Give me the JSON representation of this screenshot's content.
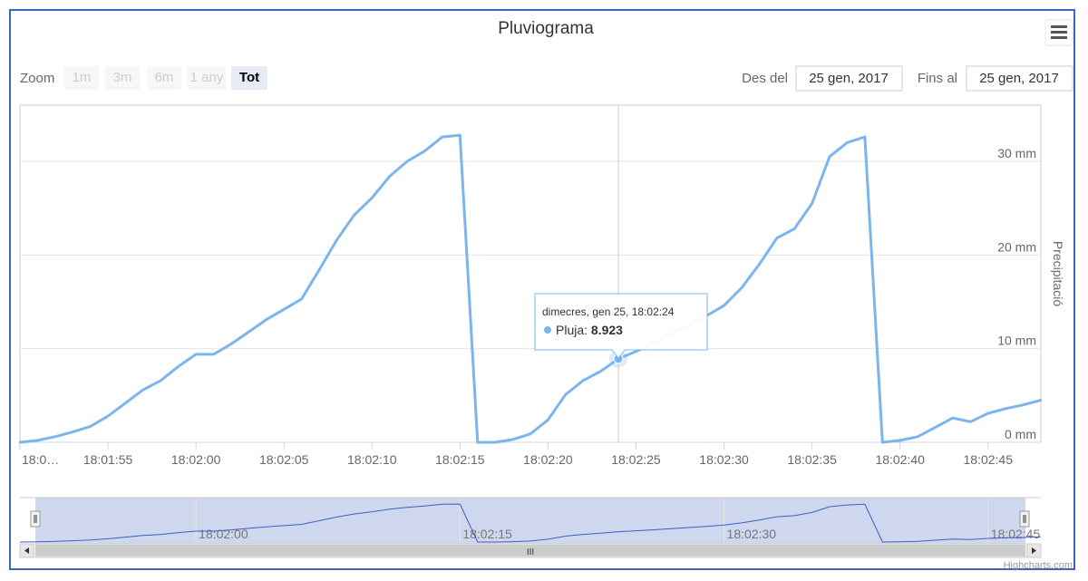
{
  "title": "Pluviograma",
  "credits": "Highcharts.com",
  "range_selector": {
    "zoom_label": "Zoom",
    "buttons": [
      {
        "label": "1m",
        "active": false
      },
      {
        "label": "3m",
        "active": false
      },
      {
        "label": "6m",
        "active": false
      },
      {
        "label": "1 any",
        "active": false
      },
      {
        "label": "Tot",
        "active": true
      }
    ],
    "from_label": "Des del",
    "from_value": "25 gen, 2017",
    "to_label": "Fins al",
    "to_value": "25 gen, 2017"
  },
  "tooltip": {
    "header": "dimecres, gen 25, 18:02:24",
    "series_name": "Pluja",
    "value": "8.923",
    "x": "18:02:24",
    "y": 8.923
  },
  "colors": {
    "series": "#7cb5ec",
    "navigator_mask": "#c5d0ea",
    "navigator_line": "#3b5fc4",
    "frame": "#3a67b8"
  },
  "menu_icon": "hamburger-menu-icon",
  "chart_data": {
    "type": "line",
    "title": "Pluviograma",
    "xlabel": "",
    "ylabel": "Precipitació",
    "x_ticks": [
      "18:0…",
      "18:01:55",
      "18:02:00",
      "18:02:05",
      "18:02:10",
      "18:02:15",
      "18:02:20",
      "18:02:25",
      "18:02:30",
      "18:02:35",
      "18:02:40",
      "18:02:45"
    ],
    "y_ticks": [
      "0 mm",
      "10 mm",
      "20 mm",
      "30 mm"
    ],
    "ylim": [
      0,
      36
    ],
    "xlim": [
      "18:01:50",
      "18:02:48"
    ],
    "grid": true,
    "legend": "none",
    "series": [
      {
        "name": "Pluja",
        "x": [
          "18:01:50",
          "18:01:51",
          "18:01:52",
          "18:01:53",
          "18:01:54",
          "18:01:55",
          "18:01:56",
          "18:01:57",
          "18:01:58",
          "18:01:59",
          "18:02:00",
          "18:02:01",
          "18:02:02",
          "18:02:03",
          "18:02:04",
          "18:02:05",
          "18:02:06",
          "18:02:07",
          "18:02:08",
          "18:02:09",
          "18:02:10",
          "18:02:11",
          "18:02:12",
          "18:02:13",
          "18:02:14",
          "18:02:15",
          "18:02:16",
          "18:02:17",
          "18:02:18",
          "18:02:19",
          "18:02:20",
          "18:02:21",
          "18:02:22",
          "18:02:23",
          "18:02:24",
          "18:02:25",
          "18:02:26",
          "18:02:27",
          "18:02:28",
          "18:02:29",
          "18:02:30",
          "18:02:31",
          "18:02:32",
          "18:02:33",
          "18:02:34",
          "18:02:35",
          "18:02:36",
          "18:02:37",
          "18:02:38",
          "18:02:39",
          "18:02:40",
          "18:02:41",
          "18:02:42",
          "18:02:43",
          "18:02:44",
          "18:02:45",
          "18:02:46",
          "18:02:47",
          "18:02:48"
        ],
        "values": [
          0,
          0.2,
          0.6,
          1.1,
          1.7,
          2.8,
          4.2,
          5.6,
          6.6,
          8.1,
          9.4,
          9.4,
          10.5,
          11.8,
          13.1,
          14.2,
          15.3,
          18.4,
          21.6,
          24.3,
          26.1,
          28.4,
          30.0,
          31.1,
          32.6,
          32.8,
          0,
          0,
          0.3,
          0.9,
          2.4,
          5.1,
          6.6,
          7.6,
          8.923,
          9.7,
          10.6,
          11.6,
          12.5,
          13.5,
          14.6,
          16.5,
          19.0,
          21.8,
          22.8,
          25.5,
          30.5,
          32.0,
          32.6,
          0,
          0.2,
          0.6,
          1.6,
          2.6,
          2.2,
          3.1,
          3.6,
          4.0,
          4.5
        ]
      }
    ]
  },
  "navigator": {
    "x_ticks": [
      "18:02:00",
      "18:02:15",
      "18:02:30",
      "18:02:45"
    ],
    "scrollbar_grip": "III"
  }
}
